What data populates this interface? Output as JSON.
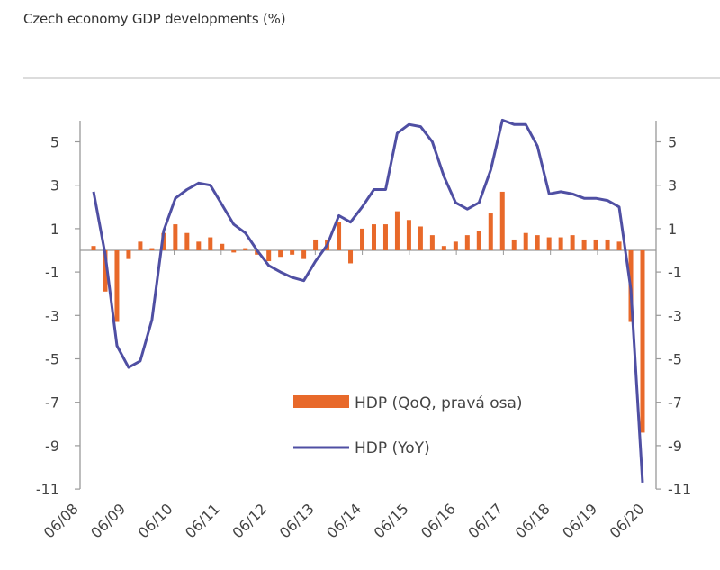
{
  "header": {
    "title": "Czech economy GDP developments (%)"
  },
  "chart_data": {
    "type": "bar+line",
    "title": "Czech economy GDP developments (%)",
    "xlabel": "",
    "ylabel": "",
    "ylim": [
      -11,
      6
    ],
    "left_axis_ticks": [
      "5",
      "3",
      "1",
      "-1",
      "-3",
      "-5",
      "-7",
      "-9",
      "-11"
    ],
    "right_axis_ticks": [
      "5",
      "3",
      "1",
      "-1",
      "-3",
      "-5",
      "-7",
      "-9",
      "-11"
    ],
    "tick_values": [
      5,
      3,
      1,
      -1,
      -3,
      -5,
      -7,
      -9,
      -11
    ],
    "x_tick_labels": [
      "06/08",
      "06/09",
      "06/10",
      "06/11",
      "06/12",
      "06/13",
      "06/14",
      "06/15",
      "06/16",
      "06/17",
      "06/18",
      "06/19",
      "06/20"
    ],
    "grid": false,
    "legend_position": "center-bottom",
    "colors": {
      "qoq": "#E8692A",
      "yoy": "#4F4FA3",
      "axis": "#999999"
    },
    "series": [
      {
        "name": "HDP (QoQ, pravá osa)",
        "type": "bar",
        "axis": "right",
        "values": [
          0.2,
          -1.9,
          -3.3,
          -0.4,
          0.4,
          0.1,
          0.8,
          1.2,
          0.8,
          0.4,
          0.6,
          0.3,
          -0.1,
          0.1,
          -0.2,
          -0.5,
          -0.3,
          -0.2,
          -0.4,
          0.5,
          0.5,
          1.3,
          -0.6,
          1.0,
          1.2,
          1.2,
          1.8,
          1.4,
          1.1,
          0.7,
          0.2,
          0.4,
          0.7,
          0.9,
          1.7,
          2.7,
          0.5,
          0.8,
          0.7,
          0.6,
          0.6,
          0.7,
          0.5,
          0.5,
          0.5,
          0.4,
          -3.3,
          -8.4
        ]
      },
      {
        "name": "HDP (YoY)",
        "type": "line",
        "axis": "left",
        "values": [
          2.7,
          -0.2,
          -4.4,
          -5.4,
          -5.1,
          -3.2,
          0.9,
          2.4,
          2.8,
          3.1,
          3.0,
          2.1,
          1.2,
          0.8,
          0.0,
          -0.7,
          -1.0,
          -1.25,
          -1.4,
          -0.5,
          0.25,
          1.6,
          1.3,
          2.0,
          2.8,
          2.8,
          5.4,
          5.8,
          5.7,
          5.0,
          3.4,
          2.2,
          1.9,
          2.2,
          3.7,
          6.0,
          5.8,
          5.8,
          4.8,
          2.6,
          2.7,
          2.6,
          2.4,
          2.4,
          2.3,
          2.0,
          -1.8,
          -10.7
        ]
      }
    ]
  }
}
